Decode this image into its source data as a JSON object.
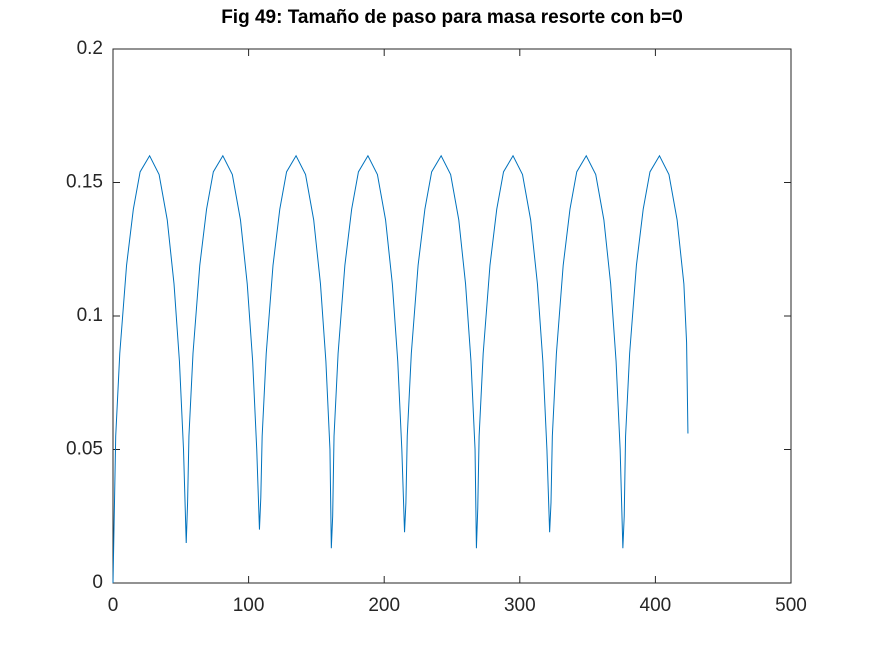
{
  "chart_data": {
    "type": "line",
    "title": "Fig 49: Tamaño de paso para masa resorte con b=0",
    "xlim": [
      0,
      500
    ],
    "xticks": [
      0,
      100,
      200,
      300,
      400,
      500
    ],
    "ylim": [
      0,
      0.2
    ],
    "yticks": [
      0,
      0.05,
      0.1,
      0.15,
      0.2
    ],
    "grid": false,
    "series": [
      {
        "color": "#0072bd",
        "x": [
          0,
          2,
          5,
          10,
          15,
          20,
          27,
          34,
          40,
          45,
          49,
          52,
          54,
          55,
          56,
          59,
          64,
          69,
          74,
          81,
          88,
          94,
          99,
          103,
          106,
          108,
          109,
          110,
          113,
          118,
          123,
          128,
          135,
          142,
          148,
          153,
          157,
          160,
          161,
          162,
          163,
          166,
          171,
          176,
          181,
          188,
          195,
          201,
          206,
          210,
          213,
          215,
          216,
          217,
          220,
          225,
          230,
          235,
          242,
          249,
          255,
          260,
          264,
          267,
          268,
          269,
          270,
          273,
          278,
          283,
          288,
          295,
          302,
          308,
          313,
          317,
          320,
          322,
          323,
          324,
          327,
          332,
          337,
          342,
          349,
          356,
          362,
          367,
          371,
          374,
          376,
          377,
          378,
          381,
          386,
          391,
          396,
          403,
          410,
          416,
          421,
          423,
          424
        ],
        "values": [
          0,
          0.055,
          0.086,
          0.119,
          0.14,
          0.154,
          0.16,
          0.153,
          0.136,
          0.112,
          0.083,
          0.05,
          0.015,
          0.03,
          0.055,
          0.086,
          0.119,
          0.14,
          0.154,
          0.16,
          0.153,
          0.136,
          0.112,
          0.083,
          0.05,
          0.02,
          0.032,
          0.055,
          0.086,
          0.119,
          0.14,
          0.154,
          0.16,
          0.153,
          0.136,
          0.112,
          0.083,
          0.05,
          0.013,
          0.025,
          0.055,
          0.086,
          0.119,
          0.14,
          0.154,
          0.16,
          0.153,
          0.136,
          0.112,
          0.083,
          0.05,
          0.019,
          0.03,
          0.055,
          0.086,
          0.119,
          0.14,
          0.154,
          0.16,
          0.153,
          0.136,
          0.112,
          0.083,
          0.05,
          0.013,
          0.028,
          0.055,
          0.086,
          0.119,
          0.14,
          0.154,
          0.16,
          0.153,
          0.136,
          0.112,
          0.083,
          0.05,
          0.019,
          0.03,
          0.055,
          0.086,
          0.119,
          0.14,
          0.154,
          0.16,
          0.153,
          0.136,
          0.112,
          0.083,
          0.05,
          0.013,
          0.025,
          0.055,
          0.086,
          0.119,
          0.14,
          0.154,
          0.16,
          0.153,
          0.136,
          0.112,
          0.09,
          0.056
        ]
      }
    ]
  }
}
